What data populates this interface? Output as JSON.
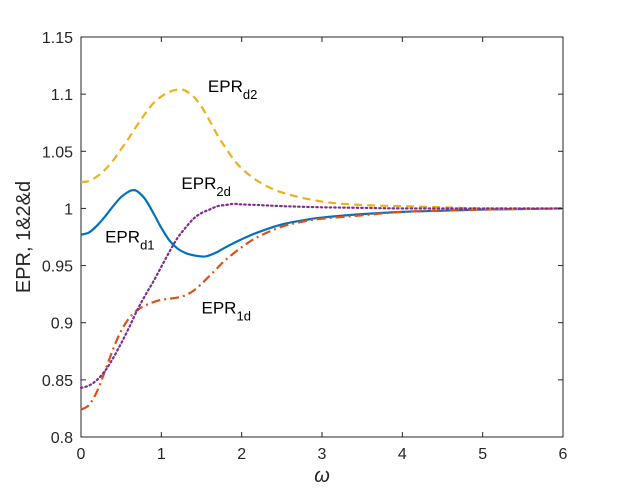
{
  "chart_data": {
    "type": "line",
    "xlabel": "ω",
    "ylabel": "EPR, 1&2&d",
    "xlim": [
      0,
      6
    ],
    "ylim": [
      0.8,
      1.15
    ],
    "xticks": [
      "0",
      "1",
      "2",
      "3",
      "4",
      "5",
      "6"
    ],
    "yticks": [
      "0.8",
      "0.85",
      "0.9",
      "0.95",
      "1",
      "1.05",
      "1.1",
      "1.15"
    ],
    "grid": false,
    "series": [
      {
        "name": "EPR_d1",
        "label_main": "EPR",
        "label_sub": "d1",
        "label_at": [
          0.3,
          0.97
        ],
        "color": "#0072BD",
        "dash": "solid",
        "x": [
          0,
          0.1,
          0.2,
          0.3,
          0.4,
          0.5,
          0.6,
          0.65,
          0.7,
          0.8,
          0.9,
          1.0,
          1.1,
          1.2,
          1.3,
          1.4,
          1.5,
          1.55,
          1.6,
          1.7,
          1.8,
          2.0,
          2.2,
          2.5,
          2.8,
          3.0,
          3.5,
          4.0,
          4.5,
          5.0,
          5.5,
          6.0
        ],
        "y": [
          0.977,
          0.979,
          0.985,
          0.993,
          1.002,
          1.01,
          1.015,
          1.016,
          1.015,
          1.008,
          0.996,
          0.983,
          0.972,
          0.965,
          0.961,
          0.959,
          0.958,
          0.958,
          0.959,
          0.962,
          0.966,
          0.973,
          0.979,
          0.986,
          0.99,
          0.992,
          0.995,
          0.997,
          0.998,
          0.999,
          0.9995,
          1.0
        ]
      },
      {
        "name": "EPR_1d",
        "label_main": "EPR",
        "label_sub": "1d",
        "label_at": [
          1.5,
          0.908
        ],
        "color": "#D95319",
        "dash": "dashdot",
        "x": [
          0,
          0.1,
          0.2,
          0.3,
          0.4,
          0.5,
          0.6,
          0.7,
          0.8,
          0.9,
          1.0,
          1.1,
          1.2,
          1.3,
          1.4,
          1.5,
          1.6,
          1.7,
          1.8,
          2.0,
          2.2,
          2.5,
          2.8,
          3.0,
          3.5,
          4.0,
          4.5,
          5.0,
          5.5,
          6.0
        ],
        "y": [
          0.824,
          0.828,
          0.84,
          0.858,
          0.877,
          0.893,
          0.904,
          0.911,
          0.915,
          0.918,
          0.92,
          0.921,
          0.922,
          0.924,
          0.928,
          0.934,
          0.941,
          0.948,
          0.955,
          0.966,
          0.975,
          0.984,
          0.989,
          0.991,
          0.994,
          0.997,
          0.998,
          0.999,
          0.9995,
          1.0
        ]
      },
      {
        "name": "EPR_d2",
        "label_main": "EPR",
        "label_sub": "d2",
        "label_at": [
          1.58,
          1.102
        ],
        "color": "#EDB120",
        "dash": "dashed",
        "x": [
          0,
          0.1,
          0.2,
          0.3,
          0.4,
          0.5,
          0.6,
          0.7,
          0.8,
          0.9,
          1.0,
          1.1,
          1.2,
          1.25,
          1.3,
          1.4,
          1.5,
          1.6,
          1.7,
          1.8,
          1.9,
          2.0,
          2.2,
          2.5,
          3.0,
          3.5,
          4.0,
          4.5,
          5.0,
          6.0
        ],
        "y": [
          1.023,
          1.024,
          1.028,
          1.034,
          1.042,
          1.052,
          1.062,
          1.073,
          1.083,
          1.092,
          1.098,
          1.102,
          1.104,
          1.104,
          1.103,
          1.098,
          1.089,
          1.077,
          1.064,
          1.053,
          1.043,
          1.035,
          1.024,
          1.014,
          1.006,
          1.003,
          1.002,
          1.001,
          1.0,
          1.0
        ]
      },
      {
        "name": "EPR_2d",
        "label_main": "EPR",
        "label_sub": "2d",
        "label_at": [
          1.25,
          1.017
        ],
        "color": "#7E2F8E",
        "dash": "dotted",
        "x": [
          0,
          0.1,
          0.2,
          0.3,
          0.4,
          0.5,
          0.6,
          0.7,
          0.8,
          0.9,
          1.0,
          1.1,
          1.2,
          1.3,
          1.4,
          1.5,
          1.6,
          1.7,
          1.8,
          1.9,
          2.0,
          2.2,
          2.5,
          3.0,
          3.5,
          4.0,
          5.0,
          6.0
        ],
        "y": [
          0.843,
          0.845,
          0.85,
          0.858,
          0.869,
          0.882,
          0.896,
          0.911,
          0.924,
          0.936,
          0.949,
          0.962,
          0.974,
          0.983,
          0.991,
          0.996,
          0.999,
          1.002,
          1.003,
          1.004,
          1.0035,
          1.003,
          1.002,
          1.001,
          1.0005,
          1.0,
          1.0,
          1.0
        ]
      }
    ]
  }
}
